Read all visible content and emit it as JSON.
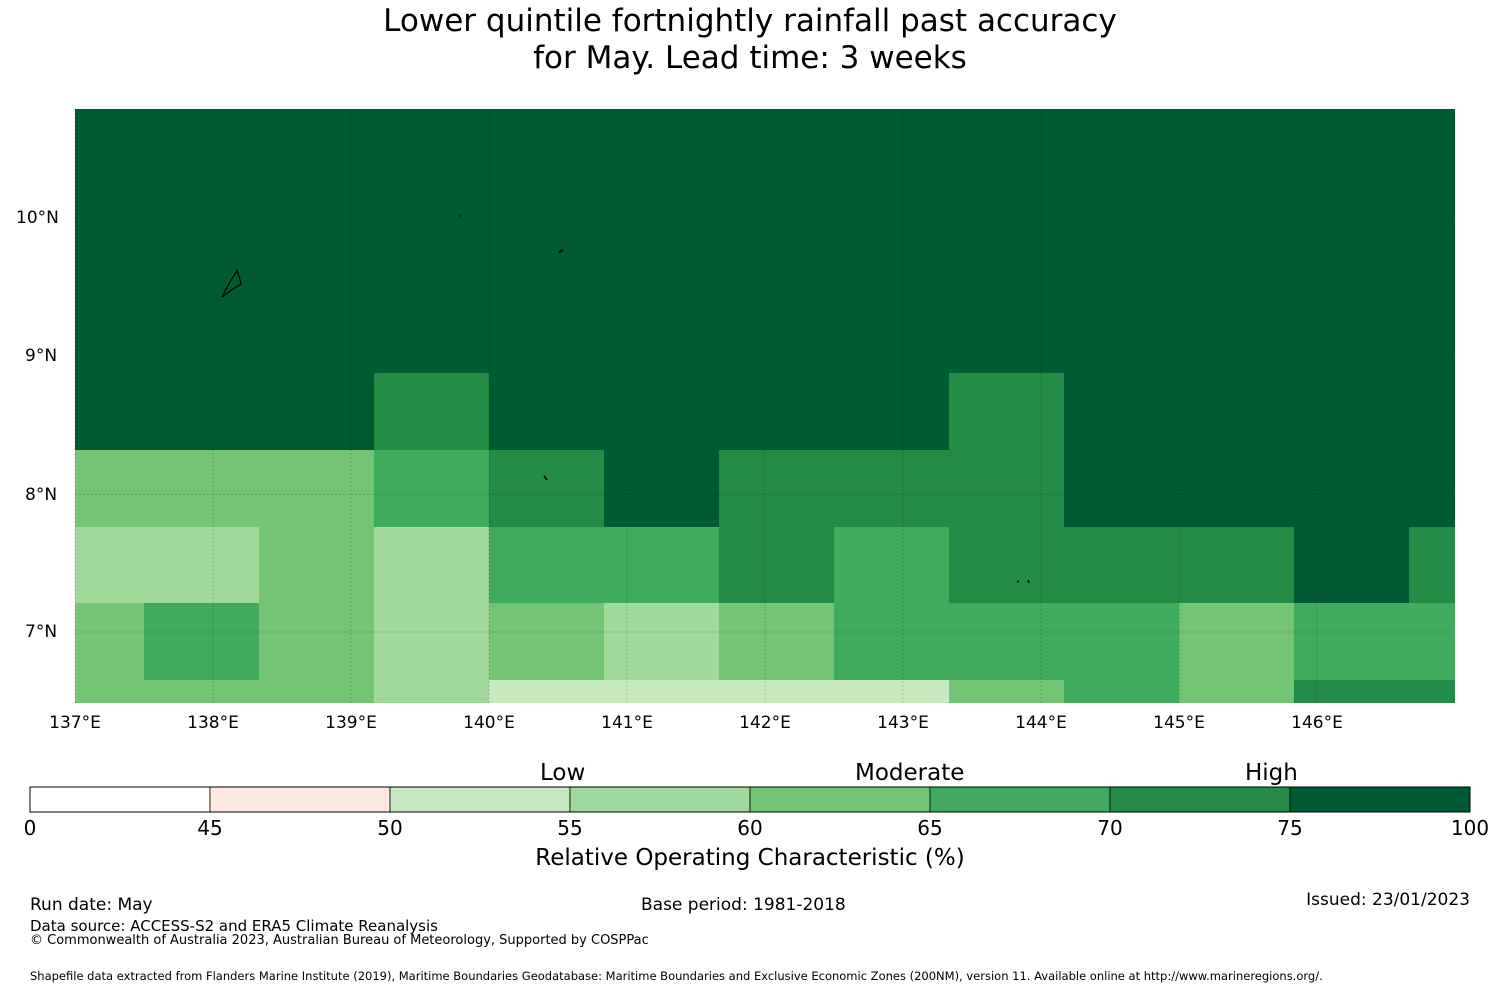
{
  "title": {
    "line1": "Lower quintile fortnightly rainfall past accuracy",
    "line2": "for May. Lead time: 3 weeks"
  },
  "map": {
    "lon_labels": [
      "137°E",
      "138°E",
      "139°E",
      "140°E",
      "141°E",
      "142°E",
      "143°E",
      "144°E",
      "145°E",
      "146°E"
    ],
    "lat_labels": [
      "10°N",
      "9°N",
      "8°N",
      "7°N"
    ],
    "lon_range": [
      137,
      147
    ],
    "lat_range": [
      6.5,
      10.8
    ]
  },
  "legend": {
    "categories": [
      "Low",
      "Moderate",
      "High"
    ],
    "ticks": [
      "0",
      "45",
      "50",
      "55",
      "60",
      "65",
      "70",
      "75",
      "100"
    ],
    "colors": [
      "#ffffff",
      "#fee8e0",
      "#c7e9c0",
      "#a1d99b",
      "#74c476",
      "#41ab5d",
      "#238b45",
      "#005a32"
    ],
    "label": "Relative Operating Characteristic (%)"
  },
  "footer": {
    "run_date": "Run date: May",
    "base_period": "Base period: 1981-2018",
    "issued": "Issued: 23/01/2023",
    "data_source": "Data source: ACCESS-S2 and ERA5 Climate Reanalysis",
    "copyright": "© Commonwealth of Australia 2023, Australian Bureau of Meteorology, Supported by COSPPac",
    "shapefile": "Shapefile data extracted from Flanders Marine Institute (2019), Maritime Boundaries Geodatabase: Maritime Boundaries and Exclusive Economic Zones (200NM), version 11. Available online at http://www.marineregions.org/."
  },
  "grid_cells": {
    "note_levels": "level index into legend.colors",
    "rows": [
      {
        "lat_band": "8.33-8.89",
        "cells": [
          [
            137.0,
            139.17,
            7
          ],
          [
            139.17,
            140.0,
            6
          ],
          [
            140.0,
            143.33,
            7
          ],
          [
            143.33,
            144.17,
            6
          ],
          [
            144.17,
            147.0,
            7
          ]
        ]
      },
      {
        "lat_band": "7.78-8.33",
        "cells": [
          [
            137.0,
            139.17,
            4
          ],
          [
            139.17,
            140.0,
            5
          ],
          [
            140.0,
            140.83,
            6
          ],
          [
            140.83,
            141.67,
            7
          ],
          [
            141.67,
            144.17,
            6
          ],
          [
            144.17,
            147.0,
            7
          ]
        ]
      },
      {
        "lat_band": "7.22-7.78",
        "cells": [
          [
            137.0,
            138.33,
            3
          ],
          [
            138.33,
            139.17,
            4
          ],
          [
            139.17,
            140.0,
            3
          ],
          [
            140.0,
            141.67,
            5
          ],
          [
            141.67,
            142.5,
            6
          ],
          [
            142.5,
            143.33,
            5
          ],
          [
            143.33,
            145.83,
            6
          ],
          [
            145.83,
            146.67,
            7
          ],
          [
            146.67,
            147.0,
            6
          ]
        ]
      },
      {
        "lat_band": "6.67-7.22",
        "cells": [
          [
            137.0,
            137.5,
            4
          ],
          [
            137.5,
            138.33,
            5
          ],
          [
            138.33,
            139.17,
            4
          ],
          [
            139.17,
            140.0,
            3
          ],
          [
            140.0,
            140.83,
            4
          ],
          [
            140.83,
            141.67,
            3
          ],
          [
            141.67,
            142.5,
            4
          ],
          [
            142.5,
            145.0,
            5
          ],
          [
            145.0,
            145.83,
            4
          ],
          [
            145.83,
            147.0,
            5
          ]
        ]
      },
      {
        "lat_band": "6.50-6.67",
        "cells": [
          [
            137.0,
            139.17,
            4
          ],
          [
            139.17,
            140.0,
            3
          ],
          [
            140.0,
            143.33,
            2
          ],
          [
            143.33,
            144.17,
            4
          ],
          [
            144.17,
            145.0,
            5
          ],
          [
            145.0,
            145.83,
            4
          ],
          [
            145.83,
            147.0,
            6
          ]
        ]
      }
    ]
  }
}
